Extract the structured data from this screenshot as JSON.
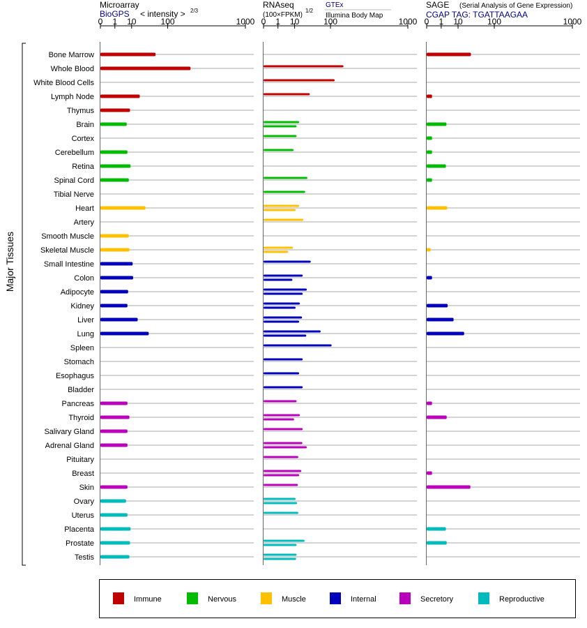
{
  "chart_data": {
    "type": "bar",
    "orientation": "horizontal",
    "y_axis_label": "Major Tissues",
    "tick_values": [
      0,
      1,
      10,
      100,
      1000
    ],
    "tick_labels": [
      "0",
      "1",
      "10",
      "100",
      "1000"
    ],
    "panels": [
      {
        "id": "microarray",
        "title": "Microarray",
        "source": "BioGPS",
        "scale_note": "< intensity >",
        "scale_exp": "2/3",
        "bars_per_row": 1
      },
      {
        "id": "rnaseq",
        "title": "RNAseq",
        "scale_note": "(100×FPKM)",
        "scale_exp": "1/2",
        "source_1": "GTEx",
        "source_2": "Illumina Body Map",
        "bars_per_row": 2
      },
      {
        "id": "sage",
        "title": "SAGE",
        "subtitle": "(Serial Analysis of Gene Expression)",
        "tag": "CGAP TAG: TGATTAAGAA",
        "bars_per_row": 1
      }
    ],
    "categories": [
      "Bone Marrow",
      "Whole Blood",
      "White Blood Cells",
      "Lymph Node",
      "Thymus",
      "Brain",
      "Cortex",
      "Cerebellum",
      "Retina",
      "Spinal Cord",
      "Tibial Nerve",
      "Heart",
      "Artery",
      "Smooth Muscle",
      "Skeletal Muscle",
      "Small Intestine",
      "Colon",
      "Adipocyte",
      "Kidney",
      "Liver",
      "Lung",
      "Spleen",
      "Stomach",
      "Esophagus",
      "Bladder",
      "Pancreas",
      "Thyroid",
      "Salivary Gland",
      "Adrenal Gland",
      "Pituitary",
      "Breast",
      "Skin",
      "Ovary",
      "Uterus",
      "Placenta",
      "Prostate",
      "Testis"
    ],
    "groups": [
      "immune",
      "immune",
      "immune",
      "immune",
      "immune",
      "nervous",
      "nervous",
      "nervous",
      "nervous",
      "nervous",
      "nervous",
      "muscle",
      "muscle",
      "muscle",
      "muscle",
      "internal",
      "internal",
      "internal",
      "internal",
      "internal",
      "internal",
      "internal",
      "internal",
      "internal",
      "internal",
      "secretory",
      "secretory",
      "secretory",
      "secretory",
      "secretory",
      "secretory",
      "secretory",
      "reproductive",
      "reproductive",
      "reproductive",
      "reproductive",
      "reproductive"
    ],
    "series": [
      {
        "name": "Microarray (BioGPS)",
        "values": [
          55,
          240,
          null,
          20,
          8.5,
          6,
          null,
          6.5,
          9,
          7.5,
          null,
          30,
          null,
          7.5,
          8,
          11,
          11.5,
          7,
          6.5,
          17,
          37,
          null,
          null,
          null,
          null,
          6.5,
          8,
          6.5,
          6.5,
          null,
          null,
          6.5,
          5.5,
          6.5,
          9,
          8.5,
          8
        ]
      },
      {
        "name": "RNAseq (GTEx)",
        "values": [
          null,
          170,
          120,
          33,
          null,
          15,
          12,
          9,
          null,
          28,
          24,
          15,
          21,
          null,
          8.5,
          35,
          20,
          27,
          16,
          19,
          62,
          105,
          20,
          15,
          20,
          12,
          16,
          20,
          19.5,
          14,
          18,
          13.5,
          11,
          14,
          null,
          23,
          12
        ]
      },
      {
        "name": "RNAseq (Illumina Body Map)",
        "values": [
          null,
          null,
          null,
          null,
          null,
          12,
          null,
          null,
          null,
          null,
          null,
          11,
          null,
          null,
          5,
          null,
          8,
          20,
          11,
          15,
          26,
          null,
          null,
          null,
          null,
          null,
          9.5,
          null,
          27,
          null,
          15,
          null,
          12.5,
          null,
          null,
          12,
          11.5
        ]
      },
      {
        "name": "SAGE (CGAP)",
        "values": [
          28,
          null,
          null,
          0.05,
          null,
          2.5,
          0.05,
          0.05,
          2.3,
          0.05,
          null,
          2.8,
          null,
          null,
          0.02,
          null,
          0.05,
          null,
          3.0,
          6.3,
          17,
          null,
          null,
          null,
          null,
          0.05,
          2.6,
          null,
          null,
          null,
          0.05,
          27,
          null,
          null,
          2.3,
          2.6,
          null
        ]
      }
    ],
    "colors": {
      "immune": "#c00000",
      "nervous": "#00bb00",
      "muscle": "#ffc000",
      "internal": "#0000bb",
      "secretory": "#bb00bb",
      "reproductive": "#00bbbb",
      "row_line": "#a8a8a8",
      "axis": "#000000",
      "link_blue": "#000088"
    },
    "legend": [
      {
        "key": "immune",
        "label": "Immune"
      },
      {
        "key": "nervous",
        "label": "Nervous"
      },
      {
        "key": "muscle",
        "label": "Muscle"
      },
      {
        "key": "internal",
        "label": "Internal"
      },
      {
        "key": "secretory",
        "label": "Secretory"
      },
      {
        "key": "reproductive",
        "label": "Reproductive"
      }
    ]
  }
}
